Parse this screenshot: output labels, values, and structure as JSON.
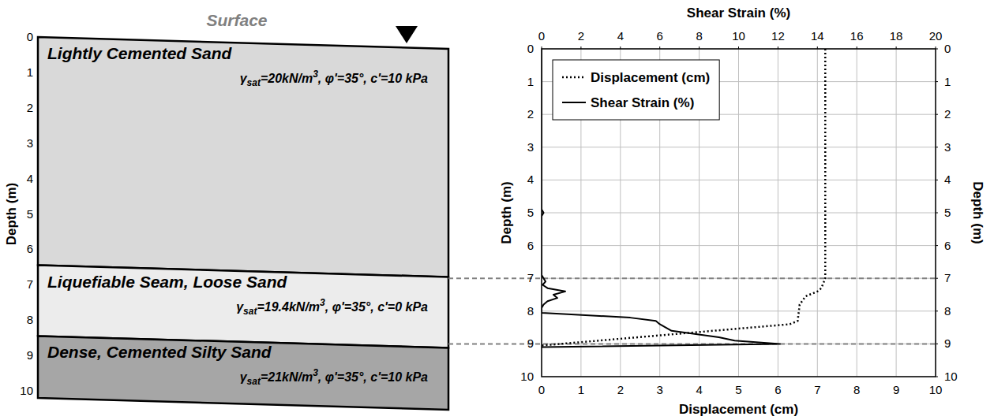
{
  "profile": {
    "surface_label": "Surface",
    "axis_label": "Depth (m)",
    "ylim": [
      10,
      0
    ],
    "yticks": [
      0,
      1,
      2,
      3,
      4,
      5,
      6,
      7,
      8,
      9,
      10
    ],
    "layers": [
      {
        "name": "Lightly Cemented Sand",
        "top": 0,
        "bottom": 6.45,
        "color": "#d9d9d9",
        "props": {
          "symbol": "γ",
          "sub": "sat",
          "value": "=20kN/m",
          "sup": "3",
          "rest": ", φ'=35°, c'=10 kPa"
        }
      },
      {
        "name": "Liquefiable Seam, Loose Sand",
        "top": 6.45,
        "bottom": 8.45,
        "color": "#ececec",
        "props": {
          "symbol": "γ",
          "sub": "sat",
          "value": "=19.4kN/m",
          "sup": "3",
          "rest": ", φ'=35°, c'=0 kPa"
        }
      },
      {
        "name": "Dense, Cemented Silty Sand",
        "top": 8.45,
        "bottom": 10.2,
        "color": "#a6a6a6",
        "props": {
          "symbol": "γ",
          "sub": "sat",
          "value": "=21kN/m",
          "sup": "3",
          "rest": ", φ'=35°, c'=10 kPa"
        }
      }
    ]
  },
  "chart_data": {
    "type": "line",
    "x_label": "Displacement (cm)",
    "x2_label": "Shear Strain (%)",
    "y_label": "Depth (m)",
    "y2_label": "Depth (m)",
    "xlim": [
      0,
      10
    ],
    "xticks": [
      0,
      1,
      2,
      3,
      4,
      5,
      6,
      7,
      8,
      9,
      10
    ],
    "x2lim": [
      0,
      20
    ],
    "x2ticks": [
      0,
      2,
      4,
      6,
      8,
      10,
      12,
      14,
      16,
      18,
      20
    ],
    "ylim": [
      10,
      0
    ],
    "yticks": [
      0,
      1,
      2,
      3,
      4,
      5,
      6,
      7,
      8,
      9,
      10
    ],
    "y2lim": [
      10,
      0
    ],
    "y2ticks": [
      0,
      1,
      2,
      3,
      4,
      5,
      6,
      7,
      8,
      9,
      10
    ],
    "reference_lines": [
      7,
      9
    ],
    "grid": true,
    "legend": "top-left",
    "series": [
      {
        "name": "Displacement (cm)",
        "color": "#000000",
        "line_style": "dotted",
        "x": [
          7.2,
          7.2,
          7.1,
          7.0,
          6.7,
          6.55,
          6.5,
          6.3,
          0
        ],
        "y": [
          0,
          7.0,
          7.3,
          7.4,
          7.55,
          7.8,
          8.3,
          8.4,
          9.05
        ]
      },
      {
        "name": "Shear Strain (%)",
        "color": "#000000",
        "line_style": "solid",
        "axis": "x2",
        "x": [
          0,
          0,
          0.1,
          0,
          0,
          0.2,
          0.05,
          0.3,
          1.2,
          0.6,
          0.8,
          0.3,
          0.1,
          0,
          0,
          1.5,
          4.5,
          5.8,
          6.0,
          6.3,
          6.6,
          9.0,
          9.8,
          12.1,
          0
        ],
        "y": [
          0,
          4.9,
          5.0,
          5.1,
          6.9,
          7.1,
          7.2,
          7.3,
          7.4,
          7.5,
          7.6,
          7.7,
          7.8,
          7.9,
          8.05,
          8.1,
          8.2,
          8.3,
          8.4,
          8.5,
          8.6,
          8.8,
          8.9,
          9.0,
          9.1
        ]
      }
    ]
  }
}
